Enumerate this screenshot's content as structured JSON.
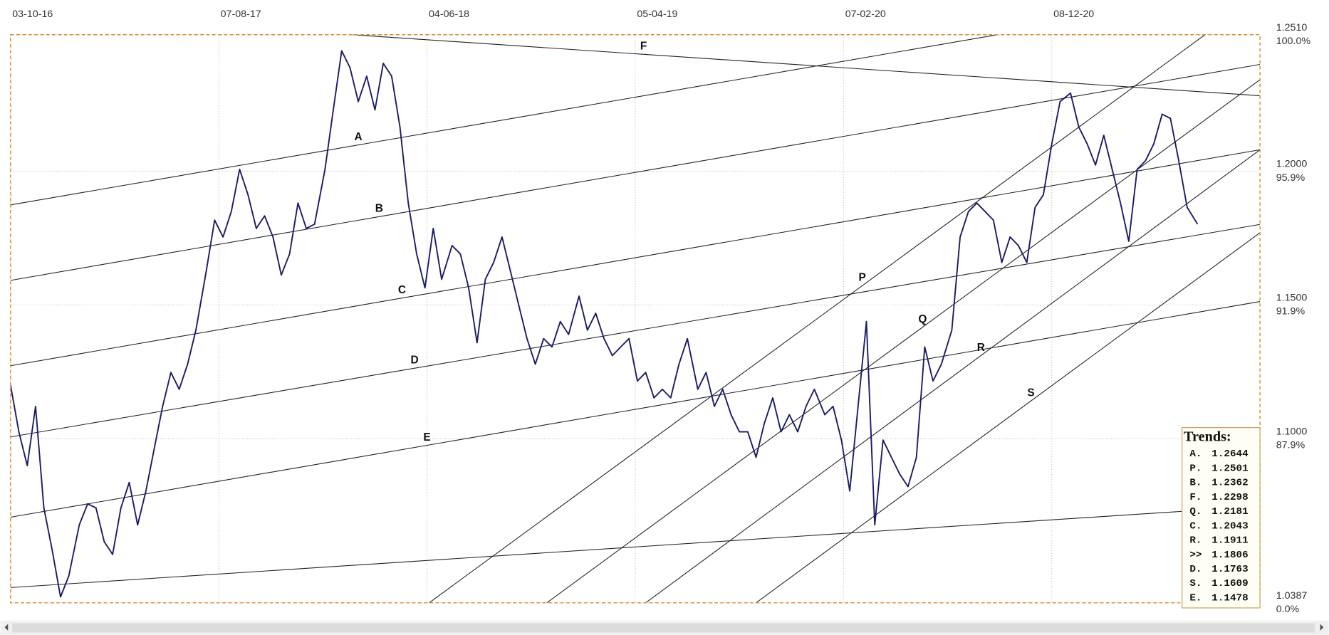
{
  "chart_data": {
    "type": "line",
    "color": "#1b1b6b",
    "grid": true,
    "xlim": [
      0,
      600
    ],
    "xticks": [
      {
        "value": 0,
        "label": "03-10-16"
      },
      {
        "value": 100,
        "label": "07-08-17"
      },
      {
        "value": 200,
        "label": "04-06-18"
      },
      {
        "value": 300,
        "label": "05-04-19"
      },
      {
        "value": 400,
        "label": "07-02-20"
      },
      {
        "value": 500,
        "label": "08-12-20"
      }
    ],
    "ylim": [
      1.0387,
      1.251
    ],
    "yticks": [
      {
        "value": 1.251,
        "label": "1.2510"
      },
      {
        "value": 1.2,
        "label": "1.2000"
      },
      {
        "value": 1.15,
        "label": "1.1500"
      },
      {
        "value": 1.1,
        "label": "1.1000"
      },
      {
        "value": 1.0387,
        "label": "1.0387"
      }
    ],
    "ytick_percents": [
      "100.0%",
      "95.9%",
      "91.9%",
      "87.9%",
      "0.0%"
    ],
    "x": [
      0,
      4,
      8,
      12,
      16,
      20,
      24,
      28,
      33,
      37,
      41,
      45,
      49,
      53,
      57,
      61,
      65,
      69,
      73,
      77,
      81,
      85,
      89,
      94,
      98,
      102,
      106,
      110,
      114,
      118,
      122,
      126,
      130,
      134,
      138,
      142,
      146,
      151,
      155,
      159,
      163,
      167,
      171,
      175,
      179,
      183,
      187,
      191,
      195,
      199,
      203,
      207,
      212,
      216,
      220,
      224,
      228,
      232,
      236,
      240,
      244,
      248,
      252,
      256,
      260,
      264,
      268,
      273,
      277,
      281,
      285,
      289,
      293,
      297,
      301,
      305,
      309,
      313,
      317,
      321,
      325,
      330,
      334,
      338,
      342,
      346,
      350,
      354,
      358,
      362,
      366,
      370,
      374,
      378,
      382,
      386,
      391,
      395,
      399,
      403,
      407,
      411,
      415,
      419,
      423,
      427,
      431,
      435,
      439,
      443,
      447,
      452,
      456,
      460,
      464,
      468,
      472,
      476,
      480,
      484,
      488,
      492,
      496,
      500,
      504,
      509,
      513,
      517,
      521,
      525,
      529,
      533,
      537,
      541,
      545,
      549,
      553,
      557,
      561,
      565,
      570
    ],
    "values": [
      1.12,
      1.1026,
      1.09,
      1.1121,
      1.0742,
      1.0583,
      1.0409,
      1.0488,
      1.0678,
      1.0757,
      1.0742,
      1.0615,
      1.0568,
      1.0742,
      1.0837,
      1.0678,
      1.0805,
      1.0963,
      1.1121,
      1.1248,
      1.1185,
      1.1279,
      1.1406,
      1.1628,
      1.1817,
      1.1754,
      1.1849,
      1.2007,
      1.1912,
      1.1786,
      1.1833,
      1.1754,
      1.1612,
      1.1691,
      1.1881,
      1.1786,
      1.1802,
      1.2007,
      1.2229,
      1.245,
      1.2387,
      1.226,
      1.2355,
      1.2229,
      1.2403,
      1.2355,
      1.2165,
      1.1881,
      1.1691,
      1.1564,
      1.1786,
      1.1596,
      1.1722,
      1.1691,
      1.1564,
      1.1359,
      1.1596,
      1.1659,
      1.1754,
      1.1628,
      1.1501,
      1.1374,
      1.1279,
      1.1374,
      1.1343,
      1.1438,
      1.139,
      1.1533,
      1.1406,
      1.1469,
      1.1374,
      1.1311,
      1.1343,
      1.1374,
      1.1216,
      1.1248,
      1.1153,
      1.1185,
      1.1153,
      1.1279,
      1.1374,
      1.1185,
      1.1248,
      1.1121,
      1.1185,
      1.109,
      1.1026,
      1.1026,
      1.0931,
      1.1058,
      1.1153,
      1.1026,
      1.109,
      1.1026,
      1.1121,
      1.1185,
      1.109,
      1.1121,
      1.0995,
      1.0805,
      1.1121,
      1.1438,
      1.0678,
      1.0995,
      1.0931,
      1.0868,
      1.0821,
      1.0931,
      1.1343,
      1.1216,
      1.1279,
      1.1406,
      1.1754,
      1.1849,
      1.1881,
      1.1849,
      1.1817,
      1.1659,
      1.1754,
      1.1722,
      1.1659,
      1.1865,
      1.1912,
      1.2102,
      1.226,
      1.2292,
      1.2165,
      1.2102,
      1.2023,
      1.2134,
      1.2007,
      1.1881,
      1.1738,
      1.2007,
      1.2039,
      1.2102,
      1.2213,
      1.2197,
      1.2039,
      1.1865,
      1.1802
    ],
    "trendlines": [
      {
        "name": "A",
        "label_x": 167,
        "points": [
          [
            0,
            1.1874
          ],
          [
            474,
            1.251
          ]
        ]
      },
      {
        "name": "B",
        "label_x": 177,
        "points": [
          [
            0,
            1.1592
          ],
          [
            600,
            1.2399
          ]
        ]
      },
      {
        "name": "C",
        "label_x": 188,
        "points": [
          [
            0,
            1.1273
          ],
          [
            600,
            1.208
          ]
        ]
      },
      {
        "name": "D",
        "label_x": 194,
        "points": [
          [
            0,
            1.1007
          ],
          [
            600,
            1.1801
          ]
        ]
      },
      {
        "name": "E",
        "label_x": 200,
        "points": [
          [
            0,
            1.0707
          ],
          [
            600,
            1.1513
          ]
        ]
      },
      {
        "points": [
          [
            0,
            1.0444
          ],
          [
            563,
            1.0729
          ]
        ]
      },
      {
        "name": "F",
        "label_x": 304,
        "points": [
          [
            164,
            1.251
          ],
          [
            600,
            1.2282
          ]
        ]
      },
      {
        "name": "P",
        "label_x": 409,
        "points": [
          [
            201,
            1.0387
          ],
          [
            573.6,
            1.251
          ]
        ]
      },
      {
        "name": "Q",
        "label_x": 438,
        "points": [
          [
            257.5,
            1.0387
          ],
          [
            600,
            1.2342
          ]
        ]
      },
      {
        "name": "R",
        "label_x": 466,
        "points": [
          [
            305,
            1.0387
          ],
          [
            600,
            1.208
          ]
        ]
      },
      {
        "name": "S",
        "label_x": 490,
        "points": [
          [
            358,
            1.0387
          ],
          [
            600,
            1.177
          ]
        ]
      }
    ],
    "trends": {
      "title": "Trends:",
      "items": [
        {
          "name": "A.",
          "value": 1.2644
        },
        {
          "name": "P.",
          "value": 1.2501
        },
        {
          "name": "B.",
          "value": 1.2362
        },
        {
          "name": "F.",
          "value": 1.2298
        },
        {
          "name": "Q.",
          "value": 1.2181
        },
        {
          "name": "C.",
          "value": 1.2043
        },
        {
          "name": "R.",
          "value": 1.1911
        },
        {
          "name": ">>",
          "value": 1.1806
        },
        {
          "name": "D.",
          "value": 1.1763
        },
        {
          "name": "S.",
          "value": 1.1609
        },
        {
          "name": "E.",
          "value": 1.1478
        }
      ]
    }
  }
}
